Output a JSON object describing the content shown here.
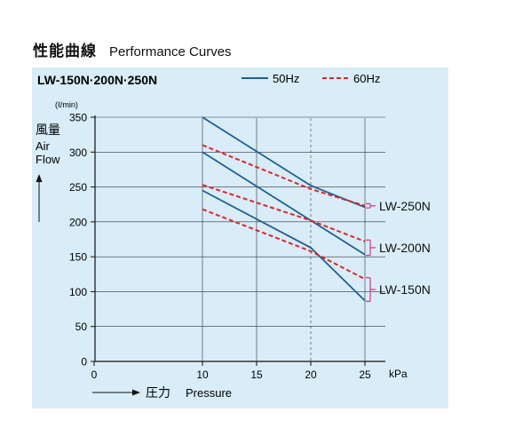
{
  "heading": {
    "jp": "性能曲線",
    "en": "Performance Curves"
  },
  "colors": {
    "panel_bg": "#d8edf8",
    "hz50": "#1f5f94",
    "hz60": "#e0242a",
    "bracket": "#d1378a",
    "grid": "#333333"
  },
  "chart_data": {
    "type": "line",
    "title": "LW-150N·200N·250N",
    "xlabel": "Pressure",
    "xlabel_jp": "圧力",
    "xunit": "kPa",
    "ylabel_jp": "風量",
    "ylabel_en_1": "Air",
    "ylabel_en_2": "Flow",
    "yunit": "(ℓ/min)",
    "xlim": [
      0,
      25
    ],
    "ylim": [
      0,
      350
    ],
    "xticks": [
      0,
      10,
      15,
      20,
      25
    ],
    "yticks": [
      0,
      50,
      100,
      150,
      200,
      250,
      300,
      350
    ],
    "dashed_reference_x": 20,
    "legend": {
      "placement": "top-right",
      "items": [
        {
          "label": "50Hz",
          "style": "solid",
          "color": "#1f5f94"
        },
        {
          "label": "60Hz",
          "style": "dashed",
          "color": "#e0242a"
        }
      ]
    },
    "series": [
      {
        "model": "LW-250N",
        "frequency": "50Hz",
        "x": [
          10,
          20,
          25
        ],
        "y": [
          350,
          252,
          221
        ]
      },
      {
        "model": "LW-250N",
        "frequency": "60Hz",
        "x": [
          10,
          20,
          25
        ],
        "y": [
          310,
          247,
          223
        ]
      },
      {
        "model": "LW-200N",
        "frequency": "50Hz",
        "x": [
          10,
          20,
          25
        ],
        "y": [
          300,
          202,
          153
        ]
      },
      {
        "model": "LW-200N",
        "frequency": "60Hz",
        "x": [
          10,
          20,
          25
        ],
        "y": [
          253,
          202,
          172
        ]
      },
      {
        "model": "LW-150N",
        "frequency": "50Hz",
        "x": [
          10,
          20,
          25
        ],
        "y": [
          245,
          163,
          87
        ]
      },
      {
        "model": "LW-150N",
        "frequency": "60Hz",
        "x": [
          10,
          20,
          25
        ],
        "y": [
          218,
          158,
          118
        ]
      }
    ],
    "model_labels": [
      {
        "label": "LW-250N",
        "y_range": [
          220,
          226
        ]
      },
      {
        "label": "LW-200N",
        "y_range": [
          152,
          174
        ]
      },
      {
        "label": "LW-150N",
        "y_range": [
          86,
          120
        ]
      }
    ]
  }
}
